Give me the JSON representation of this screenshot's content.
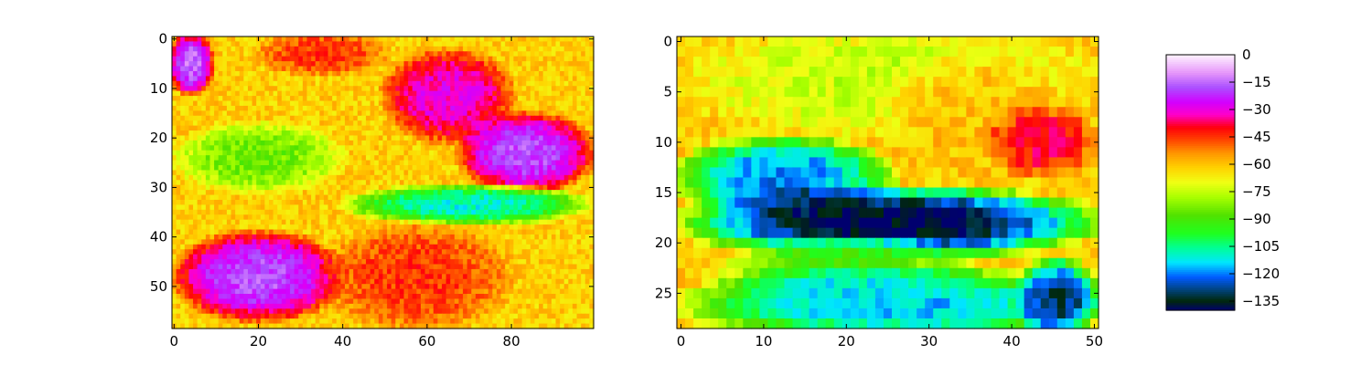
{
  "chart_data": [
    {
      "type": "heatmap",
      "title": "",
      "xlabel": "",
      "ylabel": "",
      "grid": false,
      "columns": 100,
      "rows": 59,
      "xlim": [
        -0.5,
        99.5
      ],
      "ylim": [
        58.5,
        -0.5
      ],
      "x_ticks": [
        "0",
        "20",
        "40",
        "60",
        "80"
      ],
      "y_ticks": [
        "0",
        "10",
        "20",
        "30",
        "40",
        "50"
      ],
      "colormap": "gist_ncar",
      "value_range": [
        -140,
        0
      ],
      "regions": [
        {
          "area": "top-left corner",
          "rows": [
            0,
            10
          ],
          "cols": [
            0,
            8
          ],
          "value": -15
        },
        {
          "area": "upper band",
          "rows": [
            0,
            6
          ],
          "cols": [
            20,
            50
          ],
          "value": -45
        },
        {
          "area": "upper-middle diagonal streak",
          "rows": [
            3,
            20
          ],
          "cols": [
            50,
            80
          ],
          "value": -30
        },
        {
          "area": "right blob",
          "rows": [
            16,
            30
          ],
          "cols": [
            68,
            99
          ],
          "value": -18
        },
        {
          "area": "middle-left green band",
          "rows": [
            18,
            30
          ],
          "cols": [
            0,
            40
          ],
          "value": -85
        },
        {
          "area": "horizontal cyan band",
          "rows": [
            31,
            36
          ],
          "cols": [
            40,
            99
          ],
          "value": -110
        },
        {
          "area": "bottom-left blob",
          "rows": [
            40,
            56
          ],
          "cols": [
            0,
            40
          ],
          "value": -18
        },
        {
          "area": "bottom-middle red",
          "rows": [
            38,
            58
          ],
          "cols": [
            35,
            80
          ],
          "value": -45
        }
      ]
    },
    {
      "type": "heatmap",
      "title": "",
      "xlabel": "",
      "ylabel": "",
      "grid": false,
      "columns": 51,
      "rows": 29,
      "xlim": [
        -0.5,
        50.5
      ],
      "ylim": [
        28.5,
        -0.5
      ],
      "x_ticks": [
        "0",
        "10",
        "20",
        "30",
        "40",
        "50"
      ],
      "y_ticks": [
        "0",
        "5",
        "10",
        "15",
        "20",
        "25"
      ],
      "colormap": "gist_ncar",
      "value_range": [
        -140,
        0
      ],
      "regions": [
        {
          "area": "upper yellow/green",
          "rows": [
            0,
            8
          ],
          "cols": [
            0,
            51
          ],
          "value": -75
        },
        {
          "area": "upper-right orange",
          "rows": [
            2,
            13
          ],
          "cols": [
            25,
            48
          ],
          "value": -60
        },
        {
          "area": "right red",
          "rows": [
            8,
            12
          ],
          "cols": [
            38,
            49
          ],
          "value": -40
        },
        {
          "area": "middle blue",
          "rows": [
            11,
            16
          ],
          "cols": [
            0,
            25
          ],
          "value": -120
        },
        {
          "area": "dark band",
          "rows": [
            16,
            20
          ],
          "cols": [
            0,
            51
          ],
          "value": -140
        },
        {
          "area": "lower green",
          "rows": [
            21,
            25
          ],
          "cols": [
            5,
            35
          ],
          "value": -90
        },
        {
          "area": "lower cyan",
          "rows": [
            24,
            28
          ],
          "cols": [
            0,
            51
          ],
          "value": -115
        },
        {
          "area": "bottom-right blue",
          "rows": [
            23,
            28
          ],
          "cols": [
            42,
            49
          ],
          "value": -130
        }
      ]
    },
    {
      "type": "colorbar",
      "range": [
        -140,
        0
      ],
      "tick_labels": [
        "0",
        "−15",
        "−30",
        "−45",
        "−60",
        "−75",
        "−90",
        "−105",
        "−120",
        "−135"
      ],
      "tick_values": [
        0,
        -15,
        -30,
        -45,
        -60,
        -75,
        -90,
        -105,
        -120,
        -135
      ]
    }
  ]
}
